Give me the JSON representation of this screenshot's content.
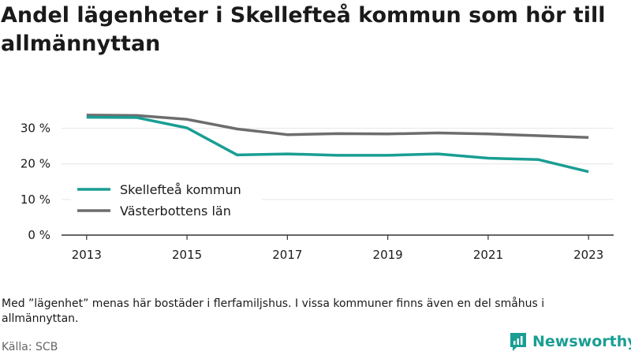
{
  "title": "Andel lägenheter i Skellefteå kommun som hör till allmännyttan",
  "note": "Med ”lägenhet” menas här bostäder i flerfamiljshus. I vissa kommuner finns även en del småhus i allmännyttan.",
  "source": "Källa: SCB",
  "brand": "Newsworthy",
  "colors": {
    "accent": "#1a9e93",
    "secondary": "#6d6d70",
    "axis": "#333333",
    "grid": "#e6e6e6"
  },
  "chart_data": {
    "type": "line",
    "x": [
      2013,
      2014,
      2015,
      2016,
      2017,
      2018,
      2019,
      2020,
      2021,
      2022,
      2023
    ],
    "xticks": [
      "2013",
      "2015",
      "2017",
      "2019",
      "2021",
      "2023"
    ],
    "yticks": [
      "0 %",
      "10 %",
      "20 %",
      "30 %"
    ],
    "ylim": [
      0,
      35
    ],
    "legend_position": "left",
    "series": [
      {
        "name": "Skellefteå kommun",
        "color": "#1a9e93",
        "values": [
          33.1,
          33.0,
          30.1,
          22.5,
          22.8,
          22.4,
          22.4,
          22.8,
          21.6,
          21.2,
          17.8
        ]
      },
      {
        "name": "Västerbottens län",
        "color": "#6d6d70",
        "values": [
          33.7,
          33.6,
          32.5,
          29.8,
          28.2,
          28.5,
          28.4,
          28.7,
          28.4,
          27.9,
          27.4
        ]
      }
    ]
  }
}
